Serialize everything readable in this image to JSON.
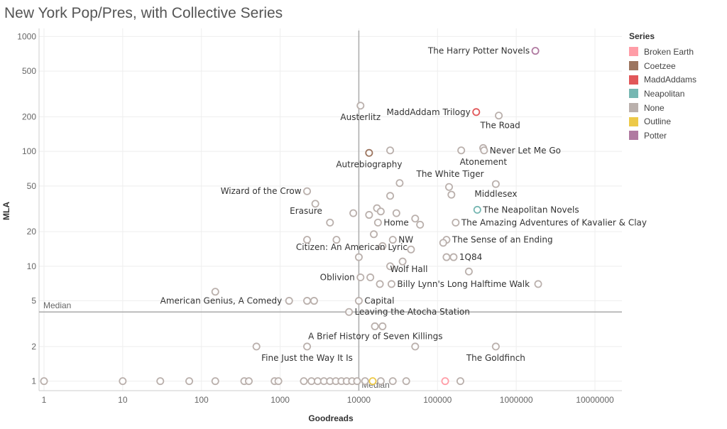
{
  "chart_data": {
    "type": "scatter",
    "title": "New York Pop/Pres, with Collective Series",
    "xlabel": "Goodreads",
    "ylabel": "MLA",
    "x_scale": "log",
    "y_scale": "log",
    "xlim": [
      1,
      40000000
    ],
    "ylim": [
      0.85,
      1050
    ],
    "x_ticks": [
      "1",
      "10",
      "100",
      "1000",
      "10000",
      "100000",
      "1000000",
      "10000000"
    ],
    "x_tick_values": [
      1,
      10,
      100,
      1000,
      10000,
      100000,
      1000000,
      10000000
    ],
    "y_ticks": [
      "1",
      "2",
      "5",
      "10",
      "20",
      "50",
      "100",
      "200",
      "500",
      "1000"
    ],
    "y_tick_values": [
      1,
      2,
      5,
      10,
      20,
      50,
      100,
      200,
      500,
      1000
    ],
    "grid": true,
    "legend_position": "right",
    "reference_lines": [
      {
        "axis": "x",
        "value": 10000,
        "label": "Median"
      },
      {
        "axis": "y",
        "value": 4,
        "label": "Median"
      }
    ],
    "legend": {
      "title": "Series",
      "items": [
        {
          "label": "Broken Earth",
          "color": "#ff9da7"
        },
        {
          "label": "Coetzee",
          "color": "#9c755f"
        },
        {
          "label": "MaddAddams",
          "color": "#e15759"
        },
        {
          "label": "Neapolitan",
          "color": "#76b7b2"
        },
        {
          "label": "None",
          "color": "#bab0ac"
        },
        {
          "label": "Outline",
          "color": "#edc948"
        },
        {
          "label": "Potter",
          "color": "#b07aa1"
        }
      ]
    },
    "points": [
      {
        "x": 1750000,
        "y": 750,
        "series": "Potter",
        "label": "The Harry Potter Novels"
      },
      {
        "x": 310000,
        "y": 220,
        "series": "MaddAddams",
        "label": "MaddAddam Trilogy"
      },
      {
        "x": 600000,
        "y": 205,
        "series": "None",
        "label": "The Road"
      },
      {
        "x": 10500,
        "y": 250,
        "series": "None",
        "label": "Austerlitz"
      },
      {
        "x": 13500,
        "y": 97,
        "series": "Coetzee",
        "label": "Autrebiography"
      },
      {
        "x": 25000,
        "y": 102,
        "series": "None",
        "label": ""
      },
      {
        "x": 200000,
        "y": 102,
        "series": "None",
        "label": "Atonement"
      },
      {
        "x": 380000,
        "y": 107,
        "series": "None",
        "label": ""
      },
      {
        "x": 390000,
        "y": 102,
        "series": "None",
        "label": "Never Let Me Go"
      },
      {
        "x": 140000,
        "y": 49,
        "series": "None",
        "label": "The White Tiger"
      },
      {
        "x": 550000,
        "y": 52,
        "series": "None",
        "label": "Middlesex"
      },
      {
        "x": 33000,
        "y": 53,
        "series": "None",
        "label": ""
      },
      {
        "x": 2200,
        "y": 45,
        "series": "None",
        "label": "Wizard of the Crow"
      },
      {
        "x": 150000,
        "y": 42,
        "series": "None",
        "label": ""
      },
      {
        "x": 25000,
        "y": 41,
        "series": "None",
        "label": ""
      },
      {
        "x": 2800,
        "y": 35,
        "series": "None",
        "label": "Erasure"
      },
      {
        "x": 320000,
        "y": 31,
        "series": "Neapolitan",
        "label": "The Neapolitan Novels"
      },
      {
        "x": 17000,
        "y": 32,
        "series": "None",
        "label": ""
      },
      {
        "x": 19000,
        "y": 30,
        "series": "None",
        "label": ""
      },
      {
        "x": 8500,
        "y": 29,
        "series": "None",
        "label": ""
      },
      {
        "x": 13500,
        "y": 28,
        "series": "None",
        "label": ""
      },
      {
        "x": 30000,
        "y": 29,
        "series": "None",
        "label": ""
      },
      {
        "x": 17500,
        "y": 24,
        "series": "None",
        "label": "Home"
      },
      {
        "x": 4300,
        "y": 24,
        "series": "None",
        "label": ""
      },
      {
        "x": 52000,
        "y": 26,
        "series": "None",
        "label": ""
      },
      {
        "x": 60000,
        "y": 23,
        "series": "None",
        "label": ""
      },
      {
        "x": 170000,
        "y": 24,
        "series": "None",
        "label": "The Amazing Adventures of Kavalier & Clay"
      },
      {
        "x": 15500,
        "y": 19,
        "series": "None",
        "label": ""
      },
      {
        "x": 2200,
        "y": 17,
        "series": "None",
        "label": ""
      },
      {
        "x": 5200,
        "y": 17,
        "series": "None",
        "label": ""
      },
      {
        "x": 27000,
        "y": 17,
        "series": "None",
        "label": "NW"
      },
      {
        "x": 130000,
        "y": 17,
        "series": "None",
        "label": "The Sense of an Ending"
      },
      {
        "x": 118000,
        "y": 16,
        "series": "None",
        "label": ""
      },
      {
        "x": 20000,
        "y": 15,
        "series": "None",
        "label": ""
      },
      {
        "x": 46000,
        "y": 14,
        "series": "None",
        "label": ""
      },
      {
        "x": 10000,
        "y": 12,
        "series": "None",
        "label": "Citizen: An American Lyric"
      },
      {
        "x": 130000,
        "y": 12,
        "series": "None",
        "label": ""
      },
      {
        "x": 160000,
        "y": 12,
        "series": "None",
        "label": "1Q84"
      },
      {
        "x": 36000,
        "y": 11,
        "series": "None",
        "label": ""
      },
      {
        "x": 25000,
        "y": 10,
        "series": "None",
        "label": "Wolf Hall"
      },
      {
        "x": 250000,
        "y": 9,
        "series": "None",
        "label": ""
      },
      {
        "x": 10500,
        "y": 8,
        "series": "None",
        "label": "Oblivion"
      },
      {
        "x": 14000,
        "y": 8,
        "series": "None",
        "label": ""
      },
      {
        "x": 18500,
        "y": 7,
        "series": "None",
        "label": ""
      },
      {
        "x": 26000,
        "y": 7,
        "series": "None",
        "label": "Billy Lynn's Long Halftime Walk"
      },
      {
        "x": 1900000,
        "y": 7,
        "series": "None",
        "label": ""
      },
      {
        "x": 150,
        "y": 6,
        "series": "None",
        "label": ""
      },
      {
        "x": 1300,
        "y": 5,
        "series": "None",
        "label": "American Genius, A Comedy"
      },
      {
        "x": 2200,
        "y": 5,
        "series": "None",
        "label": ""
      },
      {
        "x": 2700,
        "y": 5,
        "series": "None",
        "label": ""
      },
      {
        "x": 10000,
        "y": 5,
        "series": "None",
        "label": "Capital"
      },
      {
        "x": 7500,
        "y": 4,
        "series": "None",
        "label": "Leaving the Atocha Station"
      },
      {
        "x": 16000,
        "y": 3,
        "series": "None",
        "label": ""
      },
      {
        "x": 20000,
        "y": 3,
        "series": "None",
        "label": "A Brief History of Seven Killings"
      },
      {
        "x": 500,
        "y": 2,
        "series": "None",
        "label": ""
      },
      {
        "x": 2200,
        "y": 2,
        "series": "None",
        "label": "Fine Just the Way It Is"
      },
      {
        "x": 52000,
        "y": 2,
        "series": "None",
        "label": ""
      },
      {
        "x": 550000,
        "y": 2,
        "series": "None",
        "label": "The Goldfinch"
      },
      {
        "x": 1,
        "y": 1,
        "series": "None",
        "label": ""
      },
      {
        "x": 10,
        "y": 1,
        "series": "None",
        "label": ""
      },
      {
        "x": 30,
        "y": 1,
        "series": "None",
        "label": ""
      },
      {
        "x": 70,
        "y": 1,
        "series": "None",
        "label": ""
      },
      {
        "x": 150,
        "y": 1,
        "series": "None",
        "label": ""
      },
      {
        "x": 350,
        "y": 1,
        "series": "None",
        "label": ""
      },
      {
        "x": 400,
        "y": 1,
        "series": "None",
        "label": ""
      },
      {
        "x": 850,
        "y": 1,
        "series": "None",
        "label": ""
      },
      {
        "x": 950,
        "y": 1,
        "series": "None",
        "label": ""
      },
      {
        "x": 2000,
        "y": 1,
        "series": "None",
        "label": ""
      },
      {
        "x": 2500,
        "y": 1,
        "series": "None",
        "label": ""
      },
      {
        "x": 3000,
        "y": 1,
        "series": "None",
        "label": ""
      },
      {
        "x": 3600,
        "y": 1,
        "series": "None",
        "label": ""
      },
      {
        "x": 4300,
        "y": 1,
        "series": "None",
        "label": ""
      },
      {
        "x": 5100,
        "y": 1,
        "series": "None",
        "label": ""
      },
      {
        "x": 6000,
        "y": 1,
        "series": "None",
        "label": ""
      },
      {
        "x": 7000,
        "y": 1,
        "series": "None",
        "label": ""
      },
      {
        "x": 8200,
        "y": 1,
        "series": "None",
        "label": ""
      },
      {
        "x": 9500,
        "y": 1,
        "series": "None",
        "label": ""
      },
      {
        "x": 12000,
        "y": 1,
        "series": "None",
        "label": ""
      },
      {
        "x": 15000,
        "y": 1,
        "series": "Outline",
        "label": ""
      },
      {
        "x": 19000,
        "y": 1,
        "series": "None",
        "label": ""
      },
      {
        "x": 27000,
        "y": 1,
        "series": "None",
        "label": ""
      },
      {
        "x": 40000,
        "y": 1,
        "series": "None",
        "label": ""
      },
      {
        "x": 125000,
        "y": 1,
        "series": "Broken Earth",
        "label": ""
      },
      {
        "x": 195000,
        "y": 1,
        "series": "None",
        "label": ""
      }
    ]
  }
}
